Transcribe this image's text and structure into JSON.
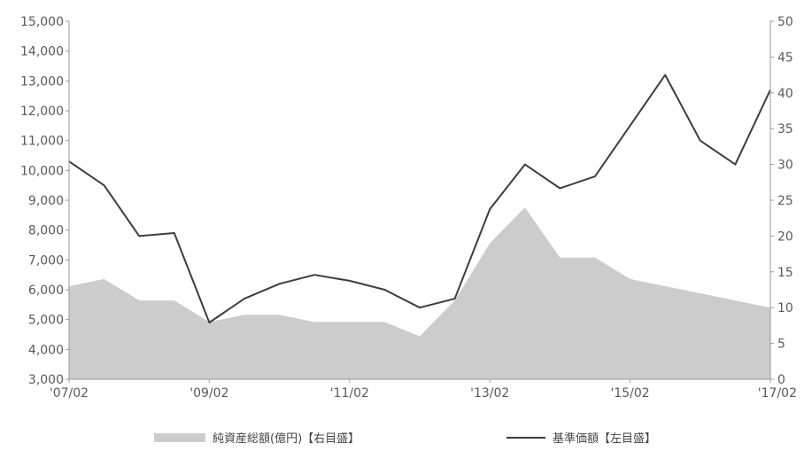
{
  "chart_data": {
    "type": "line",
    "title": "",
    "x_tick_labels": [
      "'07/02",
      "'09/02",
      "'11/02",
      "'13/02",
      "'15/02",
      "'17/02"
    ],
    "left_axis": {
      "ylim": [
        3000,
        15000
      ],
      "tick_labels": [
        "3,000",
        "4,000",
        "5,000",
        "6,000",
        "7,000",
        "8,000",
        "9,000",
        "10,000",
        "11,000",
        "12,000",
        "13,000",
        "14,000",
        "15,000"
      ]
    },
    "right_axis": {
      "ylim": [
        0,
        50
      ],
      "tick_labels": [
        "0",
        "5",
        "10",
        "15",
        "20",
        "25",
        "30",
        "35",
        "40",
        "45",
        "50"
      ]
    },
    "series": [
      {
        "name": "純資産総額(億円)【右目盛】",
        "type": "area",
        "axis": "right",
        "color": "#cccccc",
        "x": [
          "2007-02",
          "2007-08",
          "2008-02",
          "2008-08",
          "2009-02",
          "2009-08",
          "2010-02",
          "2010-08",
          "2011-02",
          "2011-08",
          "2012-02",
          "2012-08",
          "2013-02",
          "2013-08",
          "2014-02",
          "2014-08",
          "2015-02",
          "2015-08",
          "2016-02",
          "2016-08",
          "2017-02"
        ],
        "values": [
          13,
          14,
          11,
          11,
          8,
          9,
          9,
          8,
          8,
          8,
          6,
          11,
          19,
          24,
          17,
          17,
          14,
          13,
          12,
          11,
          10
        ]
      },
      {
        "name": "基準価額【左目盛】",
        "type": "line",
        "axis": "left",
        "color": "#3d3d3d",
        "x": [
          "2007-02",
          "2007-08",
          "2008-02",
          "2008-08",
          "2009-02",
          "2009-08",
          "2010-02",
          "2010-08",
          "2011-02",
          "2011-08",
          "2012-02",
          "2012-08",
          "2013-02",
          "2013-08",
          "2014-02",
          "2014-08",
          "2015-02",
          "2015-08",
          "2016-02",
          "2016-08",
          "2017-02"
        ],
        "values": [
          10300,
          9500,
          7800,
          7900,
          4900,
          5700,
          6200,
          6500,
          6300,
          6000,
          5400,
          5700,
          8700,
          10200,
          9400,
          9800,
          11500,
          13200,
          11000,
          10200,
          12700
        ]
      }
    ],
    "legend_position": "bottom",
    "grid": false
  }
}
